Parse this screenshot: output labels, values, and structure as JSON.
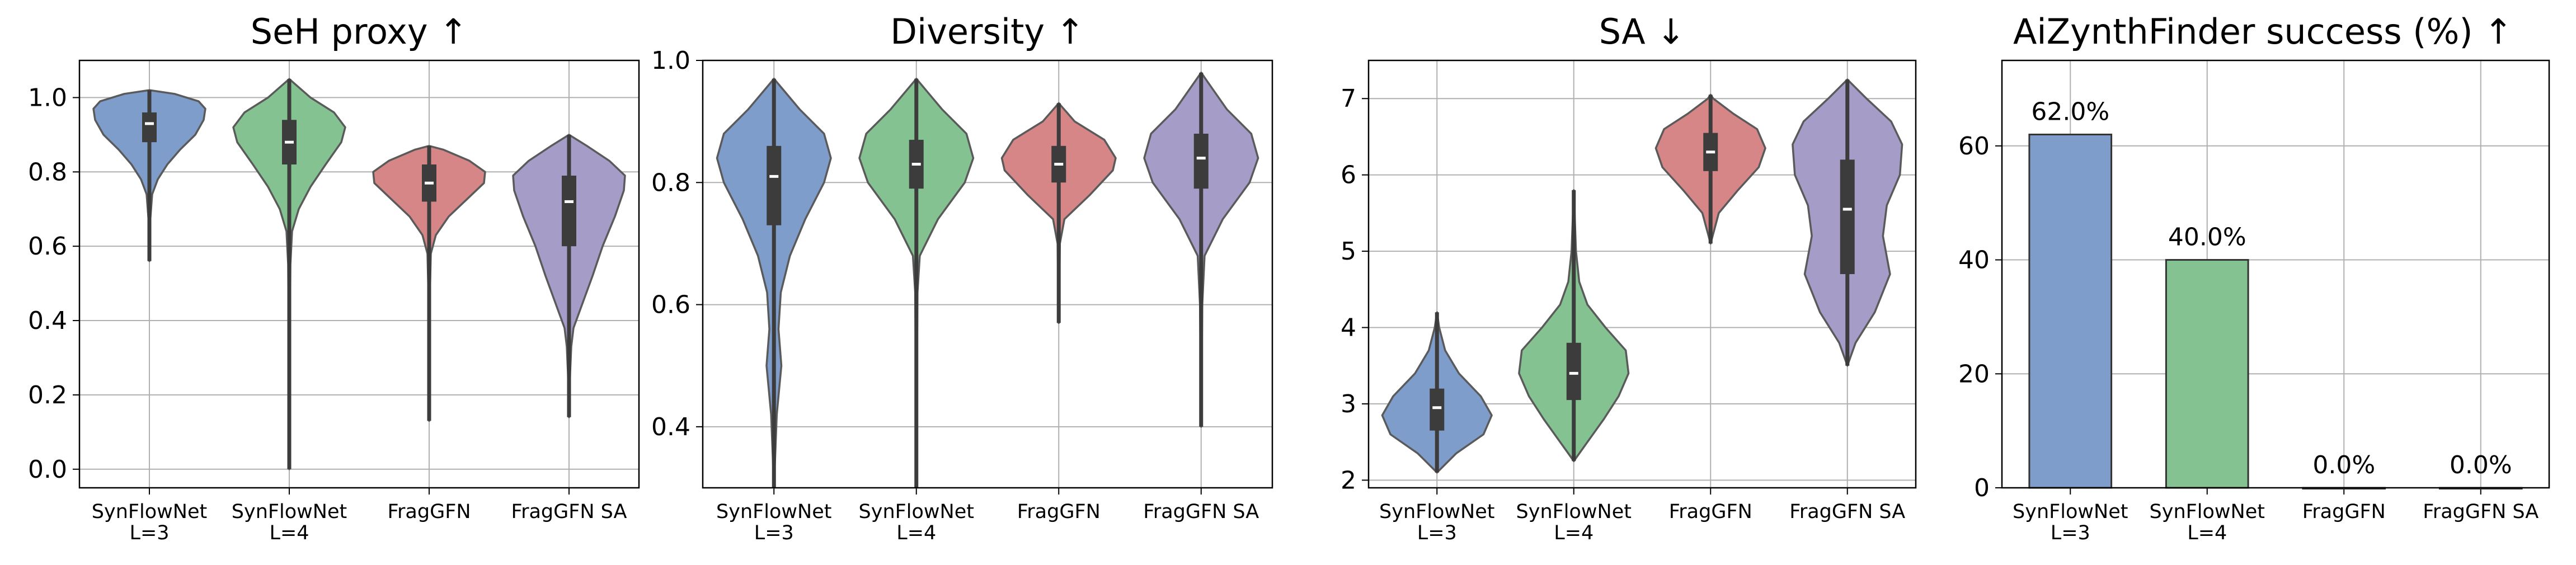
{
  "chart_data": [
    {
      "type": "violin",
      "title": "SeH proxy",
      "direction_arrow": "↑",
      "ylim": [
        -0.05,
        1.1
      ],
      "yticks": [
        "0.0",
        "0.2",
        "0.4",
        "0.6",
        "0.8",
        "1.0"
      ],
      "grid": true,
      "categories": [
        [
          "SynFlowNet",
          "L=3"
        ],
        [
          "SynFlowNet",
          "L=4"
        ],
        [
          "FragGFN"
        ],
        [
          "FragGFN SA"
        ]
      ],
      "series": [
        {
          "name": "SynFlowNet L=3",
          "color": "#7f9dcb",
          "min": 0.56,
          "max": 1.02,
          "q1": 0.88,
          "median": 0.93,
          "q3": 0.96,
          "profile": [
            [
              0.56,
              0.0
            ],
            [
              0.66,
              0.01
            ],
            [
              0.74,
              0.05
            ],
            [
              0.78,
              0.15
            ],
            [
              0.82,
              0.32
            ],
            [
              0.86,
              0.55
            ],
            [
              0.9,
              0.82
            ],
            [
              0.94,
              0.97
            ],
            [
              0.97,
              1.0
            ],
            [
              0.99,
              0.88
            ],
            [
              1.01,
              0.45
            ],
            [
              1.02,
              0.0
            ]
          ]
        },
        {
          "name": "SynFlowNet L=4",
          "color": "#84c391",
          "min": 0.0,
          "max": 1.05,
          "q1": 0.82,
          "median": 0.88,
          "q3": 0.94,
          "profile": [
            [
              0.0,
              0.0
            ],
            [
              0.3,
              0.01
            ],
            [
              0.55,
              0.02
            ],
            [
              0.64,
              0.05
            ],
            [
              0.7,
              0.17
            ],
            [
              0.76,
              0.38
            ],
            [
              0.82,
              0.65
            ],
            [
              0.88,
              0.93
            ],
            [
              0.92,
              1.0
            ],
            [
              0.96,
              0.8
            ],
            [
              1.0,
              0.38
            ],
            [
              1.05,
              0.0
            ]
          ]
        },
        {
          "name": "FragGFN",
          "color": "#d78687",
          "min": 0.13,
          "max": 0.87,
          "q1": 0.72,
          "median": 0.77,
          "q3": 0.82,
          "profile": [
            [
              0.13,
              0.0
            ],
            [
              0.45,
              0.01
            ],
            [
              0.58,
              0.03
            ],
            [
              0.63,
              0.12
            ],
            [
              0.68,
              0.35
            ],
            [
              0.73,
              0.7
            ],
            [
              0.77,
              0.98
            ],
            [
              0.8,
              1.0
            ],
            [
              0.83,
              0.72
            ],
            [
              0.86,
              0.25
            ],
            [
              0.87,
              0.0
            ]
          ]
        },
        {
          "name": "FragGFN SA",
          "color": "#a69cc8",
          "min": 0.14,
          "max": 0.9,
          "q1": 0.6,
          "median": 0.72,
          "q3": 0.79,
          "profile": [
            [
              0.14,
              0.0
            ],
            [
              0.26,
              0.02
            ],
            [
              0.33,
              0.04
            ],
            [
              0.38,
              0.08
            ],
            [
              0.45,
              0.25
            ],
            [
              0.52,
              0.42
            ],
            [
              0.6,
              0.6
            ],
            [
              0.68,
              0.82
            ],
            [
              0.75,
              0.98
            ],
            [
              0.79,
              1.0
            ],
            [
              0.83,
              0.72
            ],
            [
              0.87,
              0.32
            ],
            [
              0.9,
              0.0
            ]
          ]
        }
      ]
    },
    {
      "type": "violin",
      "title": "Diversity",
      "direction_arrow": "↑",
      "ylim": [
        0.3,
        1.0
      ],
      "yticks": [
        "0.4",
        "0.6",
        "0.8",
        "1.0"
      ],
      "grid": true,
      "categories": [
        [
          "SynFlowNet",
          "L=3"
        ],
        [
          "SynFlowNet",
          "L=4"
        ],
        [
          "FragGFN"
        ],
        [
          "FragGFN SA"
        ]
      ],
      "series": [
        {
          "name": "SynFlowNet L=3",
          "color": "#7f9dcb",
          "min": 0.3,
          "max": 0.97,
          "q1": 0.73,
          "median": 0.81,
          "q3": 0.86,
          "profile": [
            [
              0.3,
              0.0
            ],
            [
              0.42,
              0.05
            ],
            [
              0.5,
              0.13
            ],
            [
              0.56,
              0.08
            ],
            [
              0.62,
              0.12
            ],
            [
              0.68,
              0.28
            ],
            [
              0.74,
              0.55
            ],
            [
              0.8,
              0.88
            ],
            [
              0.84,
              1.0
            ],
            [
              0.88,
              0.88
            ],
            [
              0.92,
              0.45
            ],
            [
              0.97,
              0.0
            ]
          ]
        },
        {
          "name": "SynFlowNet L=4",
          "color": "#84c391",
          "min": 0.3,
          "max": 0.97,
          "q1": 0.79,
          "median": 0.83,
          "q3": 0.87,
          "profile": [
            [
              0.3,
              0.0
            ],
            [
              0.5,
              0.01
            ],
            [
              0.62,
              0.02
            ],
            [
              0.68,
              0.06
            ],
            [
              0.74,
              0.38
            ],
            [
              0.8,
              0.85
            ],
            [
              0.84,
              1.0
            ],
            [
              0.88,
              0.88
            ],
            [
              0.92,
              0.45
            ],
            [
              0.97,
              0.0
            ]
          ]
        },
        {
          "name": "FragGFN",
          "color": "#d78687",
          "min": 0.57,
          "max": 0.93,
          "q1": 0.8,
          "median": 0.83,
          "q3": 0.86,
          "profile": [
            [
              0.57,
              0.0
            ],
            [
              0.7,
              0.02
            ],
            [
              0.74,
              0.1
            ],
            [
              0.78,
              0.55
            ],
            [
              0.82,
              0.95
            ],
            [
              0.84,
              1.0
            ],
            [
              0.87,
              0.8
            ],
            [
              0.9,
              0.28
            ],
            [
              0.93,
              0.0
            ]
          ]
        },
        {
          "name": "FragGFN SA",
          "color": "#a69cc8",
          "min": 0.4,
          "max": 0.98,
          "q1": 0.79,
          "median": 0.84,
          "q3": 0.88,
          "profile": [
            [
              0.4,
              0.0
            ],
            [
              0.6,
              0.02
            ],
            [
              0.68,
              0.06
            ],
            [
              0.74,
              0.38
            ],
            [
              0.8,
              0.85
            ],
            [
              0.84,
              1.0
            ],
            [
              0.88,
              0.88
            ],
            [
              0.92,
              0.45
            ],
            [
              0.98,
              0.0
            ]
          ]
        }
      ]
    },
    {
      "type": "violin",
      "title": "SA",
      "direction_arrow": "↓",
      "ylim": [
        1.9,
        7.5
      ],
      "yticks": [
        "2",
        "3",
        "4",
        "5",
        "6",
        "7"
      ],
      "grid": true,
      "categories": [
        [
          "SynFlowNet",
          "L=3"
        ],
        [
          "SynFlowNet",
          "L=4"
        ],
        [
          "FragGFN"
        ],
        [
          "FragGFN SA"
        ]
      ],
      "series": [
        {
          "name": "SynFlowNet L=3",
          "color": "#7f9dcb",
          "min": 2.1,
          "max": 4.2,
          "q1": 2.65,
          "median": 2.95,
          "q3": 3.2,
          "profile": [
            [
              2.1,
              0.0
            ],
            [
              2.35,
              0.35
            ],
            [
              2.6,
              0.85
            ],
            [
              2.85,
              1.0
            ],
            [
              3.1,
              0.8
            ],
            [
              3.4,
              0.4
            ],
            [
              3.7,
              0.15
            ],
            [
              4.0,
              0.04
            ],
            [
              4.2,
              0.0
            ]
          ]
        },
        {
          "name": "SynFlowNet L=4",
          "color": "#84c391",
          "min": 2.25,
          "max": 5.8,
          "q1": 3.05,
          "median": 3.4,
          "q3": 3.8,
          "profile": [
            [
              2.25,
              0.0
            ],
            [
              2.5,
              0.25
            ],
            [
              2.8,
              0.55
            ],
            [
              3.1,
              0.82
            ],
            [
              3.4,
              1.0
            ],
            [
              3.7,
              0.95
            ],
            [
              4.0,
              0.58
            ],
            [
              4.3,
              0.25
            ],
            [
              4.6,
              0.1
            ],
            [
              5.0,
              0.04
            ],
            [
              5.8,
              0.0
            ]
          ]
        },
        {
          "name": "FragGFN",
          "color": "#d78687",
          "min": 5.1,
          "max": 7.05,
          "q1": 6.05,
          "median": 6.3,
          "q3": 6.55,
          "profile": [
            [
              5.1,
              0.0
            ],
            [
              5.5,
              0.15
            ],
            [
              5.8,
              0.5
            ],
            [
              6.1,
              0.88
            ],
            [
              6.35,
              1.0
            ],
            [
              6.6,
              0.85
            ],
            [
              6.8,
              0.42
            ],
            [
              7.0,
              0.05
            ],
            [
              7.05,
              0.0
            ]
          ]
        },
        {
          "name": "FragGFN SA",
          "color": "#a69cc8",
          "min": 3.5,
          "max": 7.25,
          "q1": 4.7,
          "median": 5.55,
          "q3": 6.2,
          "profile": [
            [
              3.5,
              0.0
            ],
            [
              3.8,
              0.15
            ],
            [
              4.2,
              0.5
            ],
            [
              4.7,
              0.78
            ],
            [
              5.2,
              0.65
            ],
            [
              5.6,
              0.72
            ],
            [
              6.0,
              0.96
            ],
            [
              6.4,
              1.0
            ],
            [
              6.7,
              0.8
            ],
            [
              7.0,
              0.35
            ],
            [
              7.25,
              0.0
            ]
          ]
        }
      ]
    },
    {
      "type": "bar",
      "title": "AiZynthFinder success (%)",
      "direction_arrow": "↑",
      "ylim": [
        0,
        75
      ],
      "yticks": [
        "0",
        "20",
        "40",
        "60"
      ],
      "grid": true,
      "categories": [
        [
          "SynFlowNet",
          "L=3"
        ],
        [
          "SynFlowNet",
          "L=4"
        ],
        [
          "FragGFN"
        ],
        [
          "FragGFN SA"
        ]
      ],
      "values": [
        62.0,
        40.0,
        0.0,
        0.0
      ],
      "labels": [
        "62.0%",
        "40.0%",
        "0.0%",
        "0.0%"
      ],
      "colors": [
        "#7f9dcb",
        "#84c391",
        "#d78687",
        "#a69cc8"
      ]
    }
  ]
}
